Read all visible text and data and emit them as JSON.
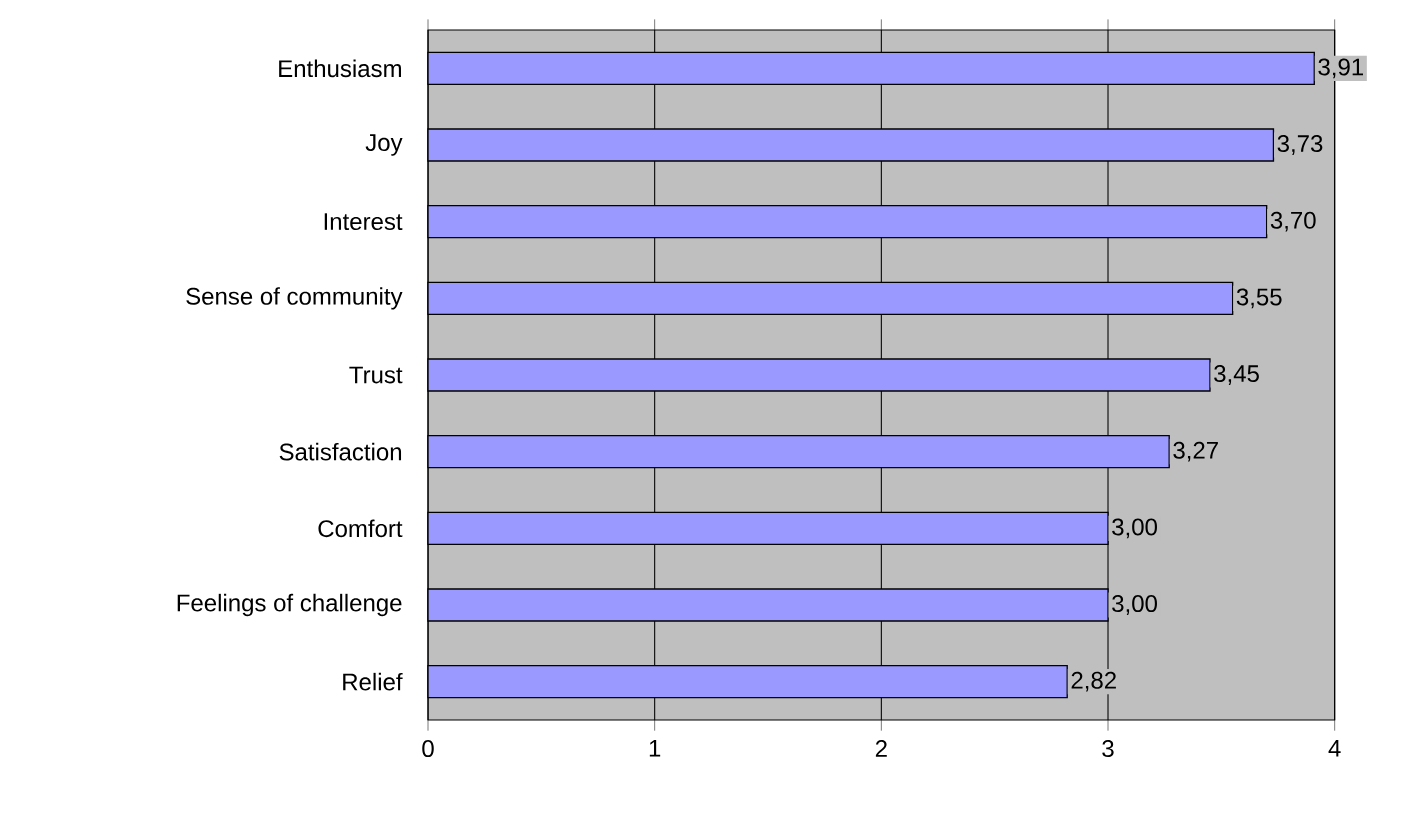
{
  "chart_data": {
    "type": "bar",
    "orientation": "horizontal",
    "categories": [
      "Enthusiasm",
      "Joy",
      "Interest",
      "Sense of community",
      "Trust",
      "Satisfaction",
      "Comfort",
      "Feelings of challenge",
      "Relief"
    ],
    "values": [
      3.91,
      3.73,
      3.7,
      3.55,
      3.45,
      3.27,
      3.0,
      3.0,
      2.82
    ],
    "value_labels": [
      "3,91",
      "3,73",
      "3,70",
      "3,55",
      "3,45",
      "3,27",
      "3,00",
      "3,00",
      "2,82"
    ],
    "color": "#9999ff",
    "xlim": [
      0,
      4
    ],
    "xticks": [
      0,
      1,
      2,
      3,
      4
    ],
    "grid": "x"
  }
}
